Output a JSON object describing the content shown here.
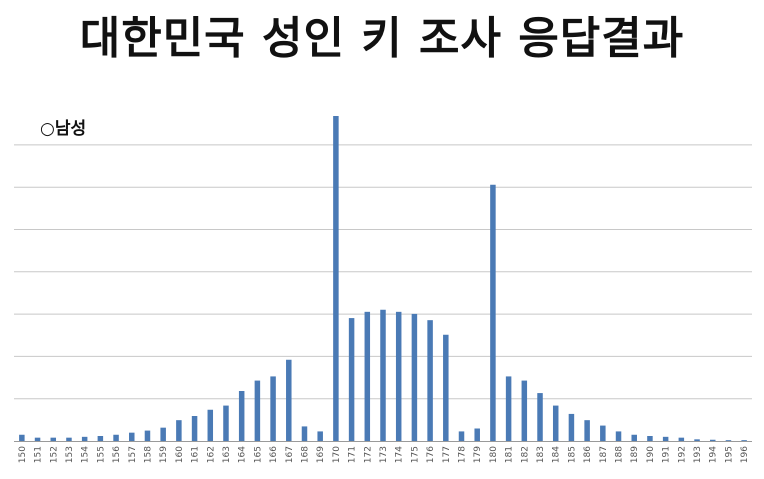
{
  "header": {
    "title": "대한민국 성인 키 조사 응답결과"
  },
  "chart_data": {
    "type": "bar",
    "subtitle": "○남성",
    "categories": [
      "150",
      "151",
      "152",
      "153",
      "154",
      "155",
      "156",
      "157",
      "158",
      "159",
      "160",
      "161",
      "162",
      "163",
      "164",
      "165",
      "166",
      "167",
      "168",
      "169",
      "170",
      "171",
      "172",
      "173",
      "174",
      "175",
      "176",
      "177",
      "178",
      "179",
      "180",
      "181",
      "182",
      "183",
      "184",
      "185",
      "186",
      "187",
      "188",
      "189",
      "190",
      "191",
      "192",
      "193",
      "194",
      "195",
      "196"
    ],
    "values": [
      1.5,
      0.8,
      0.8,
      0.8,
      1.0,
      1.2,
      1.5,
      2.0,
      2.5,
      3.2,
      5.0,
      6.0,
      7.5,
      8.5,
      12.0,
      14.5,
      15.5,
      19.5,
      3.5,
      2.3,
      78.0,
      29.5,
      31.0,
      31.5,
      31.0,
      30.5,
      29.0,
      25.5,
      2.3,
      3.0,
      61.5,
      15.5,
      14.5,
      11.5,
      8.5,
      6.5,
      5.0,
      3.7,
      2.3,
      1.5,
      1.2,
      1.0,
      0.8,
      0.4,
      0.3,
      0.2,
      0.2
    ],
    "ylim": [
      0,
      78
    ],
    "grid": true,
    "bar_color": "#4a7ab5",
    "grid_color": "#c8c8c8"
  }
}
